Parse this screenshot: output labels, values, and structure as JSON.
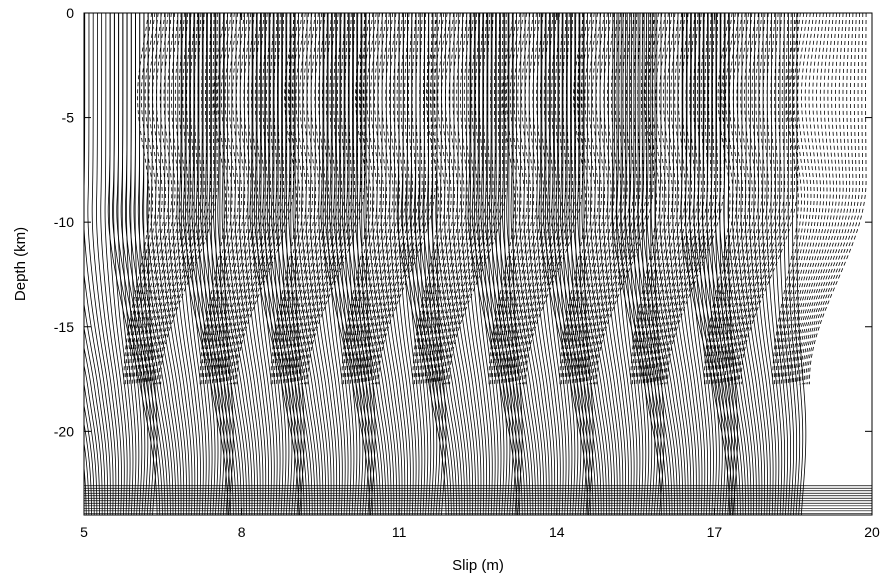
{
  "chart_data": {
    "type": "line",
    "title": "",
    "xlabel": "Slip (m)",
    "ylabel": "Depth (km)",
    "xlim": [
      5,
      20
    ],
    "ylim": [
      -24,
      0
    ],
    "xticks": [
      5,
      8,
      11,
      14,
      17,
      20
    ],
    "yticks": [
      0,
      -5,
      -10,
      -15,
      -20
    ],
    "grid": false,
    "legend": "none",
    "colors": {
      "line": "#000000",
      "frame": "#000000"
    },
    "series": [
      {
        "style": "solid",
        "description_free": true,
        "kind": "interseismic",
        "count_per_cycle": 28,
        "profile_depth": [
          0,
          -2,
          -4,
          -6,
          -8,
          -10,
          -12,
          -14,
          -16,
          -18,
          -20,
          -22,
          -24
        ]
      },
      {
        "style": "dashed",
        "kind": "coseismic",
        "count_per_cycle": 22
      }
    ],
    "event_slip_positions": [
      6.3,
      7.75,
      9.1,
      10.45,
      11.8,
      13.25,
      14.6,
      15.95,
      17.35,
      18.65
    ],
    "nucleation_depth": -17.8
  }
}
